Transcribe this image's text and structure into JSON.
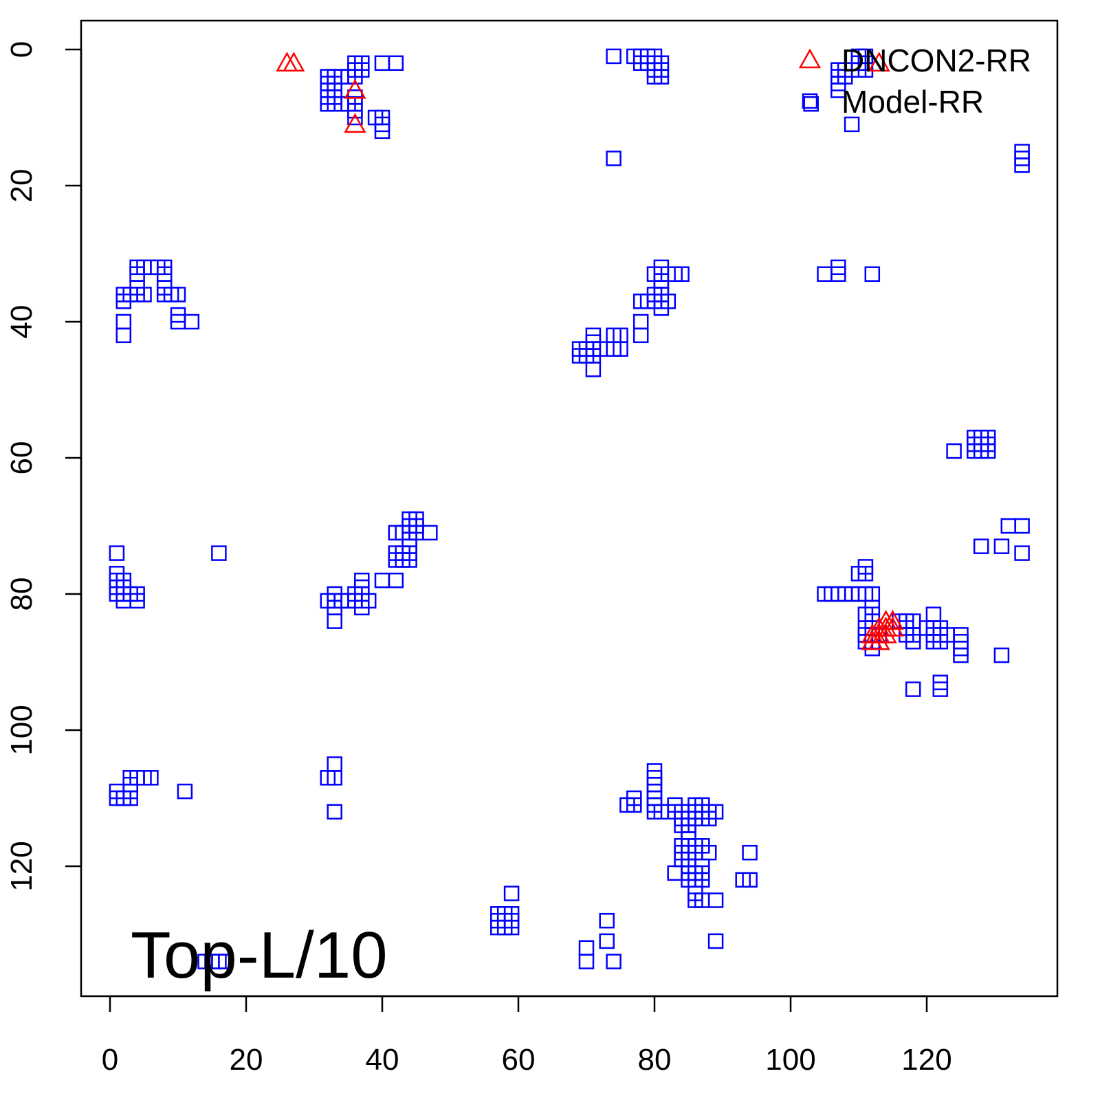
{
  "chart_data": {
    "type": "scatter",
    "title": "Top-L/10",
    "xlabel": "",
    "ylabel": "",
    "xlim": [
      0,
      135
    ],
    "ylim": [
      135,
      0
    ],
    "xticks": [
      0,
      20,
      40,
      60,
      80,
      100,
      120
    ],
    "yticks": [
      0,
      20,
      40,
      60,
      80,
      100,
      120
    ],
    "grid": false,
    "legend_position": "top-right",
    "colors": {
      "DNCON2-RR": "#ff0000",
      "Model-RR": "#0000ff"
    },
    "series": [
      {
        "name": "DNCON2-RR",
        "marker": "triangle",
        "points": [
          [
            26,
            2
          ],
          [
            27,
            2
          ],
          [
            36,
            6
          ],
          [
            36,
            11
          ],
          [
            113,
            2
          ],
          [
            114,
            84
          ],
          [
            115,
            84
          ],
          [
            113,
            85
          ],
          [
            114,
            85
          ],
          [
            115,
            85
          ],
          [
            112,
            86
          ],
          [
            113,
            86
          ],
          [
            114,
            86
          ],
          [
            112,
            87
          ],
          [
            113,
            87
          ]
        ]
      },
      {
        "name": "Model-RR",
        "marker": "square",
        "points": [
          [
            32,
            4
          ],
          [
            32,
            5
          ],
          [
            32,
            6
          ],
          [
            32,
            7
          ],
          [
            32,
            8
          ],
          [
            33,
            4
          ],
          [
            33,
            5
          ],
          [
            33,
            6
          ],
          [
            33,
            7
          ],
          [
            33,
            8
          ],
          [
            34,
            4
          ],
          [
            34,
            8
          ],
          [
            35,
            4
          ],
          [
            35,
            8
          ],
          [
            36,
            2
          ],
          [
            36,
            3
          ],
          [
            36,
            4
          ],
          [
            36,
            7
          ],
          [
            36,
            8
          ],
          [
            36,
            9
          ],
          [
            36,
            10
          ],
          [
            37,
            2
          ],
          [
            37,
            3
          ],
          [
            39,
            10
          ],
          [
            40,
            2
          ],
          [
            40,
            10
          ],
          [
            40,
            11
          ],
          [
            40,
            12
          ],
          [
            42,
            2
          ],
          [
            74,
            1
          ],
          [
            77,
            1
          ],
          [
            78,
            1
          ],
          [
            78,
            2
          ],
          [
            79,
            1
          ],
          [
            79,
            2
          ],
          [
            80,
            1
          ],
          [
            80,
            2
          ],
          [
            80,
            3
          ],
          [
            80,
            4
          ],
          [
            81,
            2
          ],
          [
            81,
            3
          ],
          [
            81,
            4
          ],
          [
            74,
            16
          ],
          [
            103,
            8
          ],
          [
            107,
            3
          ],
          [
            107,
            4
          ],
          [
            107,
            5
          ],
          [
            107,
            6
          ],
          [
            108,
            3
          ],
          [
            108,
            4
          ],
          [
            109,
            11
          ],
          [
            110,
            1
          ],
          [
            110,
            2
          ],
          [
            110,
            3
          ],
          [
            111,
            1
          ],
          [
            111,
            2
          ],
          [
            111,
            3
          ],
          [
            134,
            15
          ],
          [
            134,
            16
          ],
          [
            134,
            17
          ],
          [
            2,
            36
          ],
          [
            2,
            37
          ],
          [
            2,
            40
          ],
          [
            2,
            42
          ],
          [
            3,
            36
          ],
          [
            4,
            32
          ],
          [
            4,
            33
          ],
          [
            4,
            35
          ],
          [
            4,
            36
          ],
          [
            5,
            32
          ],
          [
            5,
            36
          ],
          [
            6,
            32
          ],
          [
            7,
            32
          ],
          [
            8,
            32
          ],
          [
            8,
            33
          ],
          [
            8,
            35
          ],
          [
            8,
            36
          ],
          [
            9,
            36
          ],
          [
            10,
            36
          ],
          [
            10,
            39
          ],
          [
            10,
            40
          ],
          [
            12,
            40
          ],
          [
            69,
            44
          ],
          [
            69,
            45
          ],
          [
            70,
            44
          ],
          [
            70,
            45
          ],
          [
            71,
            42
          ],
          [
            71,
            43
          ],
          [
            71,
            44
          ],
          [
            71,
            45
          ],
          [
            71,
            47
          ],
          [
            72,
            44
          ],
          [
            74,
            42
          ],
          [
            74,
            44
          ],
          [
            75,
            42
          ],
          [
            75,
            44
          ],
          [
            78,
            37
          ],
          [
            78,
            40
          ],
          [
            78,
            42
          ],
          [
            79,
            37
          ],
          [
            80,
            33
          ],
          [
            80,
            36
          ],
          [
            80,
            37
          ],
          [
            81,
            32
          ],
          [
            81,
            33
          ],
          [
            81,
            34
          ],
          [
            81,
            35
          ],
          [
            81,
            36
          ],
          [
            81,
            38
          ],
          [
            82,
            37
          ],
          [
            83,
            33
          ],
          [
            84,
            33
          ],
          [
            105,
            33
          ],
          [
            107,
            32
          ],
          [
            107,
            33
          ],
          [
            112,
            33
          ],
          [
            124,
            59
          ],
          [
            127,
            57
          ],
          [
            127,
            58
          ],
          [
            127,
            59
          ],
          [
            128,
            57
          ],
          [
            128,
            58
          ],
          [
            128,
            59
          ],
          [
            129,
            57
          ],
          [
            129,
            58
          ],
          [
            129,
            59
          ],
          [
            1,
            74
          ],
          [
            1,
            77
          ],
          [
            1,
            78
          ],
          [
            1,
            79
          ],
          [
            1,
            80
          ],
          [
            2,
            78
          ],
          [
            2,
            79
          ],
          [
            2,
            80
          ],
          [
            2,
            81
          ],
          [
            3,
            80
          ],
          [
            4,
            80
          ],
          [
            4,
            81
          ],
          [
            16,
            74
          ],
          [
            32,
            81
          ],
          [
            33,
            80
          ],
          [
            33,
            81
          ],
          [
            33,
            82
          ],
          [
            33,
            84
          ],
          [
            34,
            81
          ],
          [
            35,
            81
          ],
          [
            36,
            80
          ],
          [
            36,
            81
          ],
          [
            37,
            78
          ],
          [
            37,
            79
          ],
          [
            37,
            80
          ],
          [
            37,
            82
          ],
          [
            38,
            81
          ],
          [
            40,
            78
          ],
          [
            42,
            71
          ],
          [
            42,
            74
          ],
          [
            42,
            75
          ],
          [
            42,
            78
          ],
          [
            43,
            71
          ],
          [
            43,
            74
          ],
          [
            43,
            75
          ],
          [
            44,
            69
          ],
          [
            44,
            70
          ],
          [
            44,
            71
          ],
          [
            44,
            72
          ],
          [
            44,
            73
          ],
          [
            44,
            74
          ],
          [
            44,
            75
          ],
          [
            45,
            69
          ],
          [
            45,
            70
          ],
          [
            45,
            71
          ],
          [
            47,
            71
          ],
          [
            105,
            80
          ],
          [
            106,
            80
          ],
          [
            107,
            80
          ],
          [
            108,
            80
          ],
          [
            109,
            80
          ],
          [
            110,
            77
          ],
          [
            110,
            80
          ],
          [
            111,
            76
          ],
          [
            111,
            77
          ],
          [
            111,
            80
          ],
          [
            111,
            83
          ],
          [
            111,
            85
          ],
          [
            111,
            86
          ],
          [
            111,
            87
          ],
          [
            112,
            80
          ],
          [
            112,
            82
          ],
          [
            112,
            83
          ],
          [
            112,
            84
          ],
          [
            112,
            85
          ],
          [
            112,
            86
          ],
          [
            112,
            87
          ],
          [
            112,
            88
          ],
          [
            113,
            86
          ],
          [
            116,
            84
          ],
          [
            117,
            84
          ],
          [
            117,
            85
          ],
          [
            117,
            86
          ],
          [
            118,
            84
          ],
          [
            118,
            86
          ],
          [
            118,
            87
          ],
          [
            118,
            94
          ],
          [
            120,
            85
          ],
          [
            121,
            83
          ],
          [
            121,
            85
          ],
          [
            121,
            86
          ],
          [
            121,
            87
          ],
          [
            122,
            85
          ],
          [
            122,
            86
          ],
          [
            122,
            87
          ],
          [
            122,
            93
          ],
          [
            122,
            94
          ],
          [
            123,
            86
          ],
          [
            125,
            86
          ],
          [
            125,
            87
          ],
          [
            125,
            88
          ],
          [
            125,
            89
          ],
          [
            128,
            73
          ],
          [
            131,
            73
          ],
          [
            131,
            89
          ],
          [
            132,
            70
          ],
          [
            134,
            70
          ],
          [
            134,
            74
          ],
          [
            1,
            109
          ],
          [
            1,
            110
          ],
          [
            2,
            110
          ],
          [
            3,
            107
          ],
          [
            3,
            108
          ],
          [
            3,
            109
          ],
          [
            3,
            110
          ],
          [
            4,
            107
          ],
          [
            5,
            107
          ],
          [
            6,
            107
          ],
          [
            11,
            109
          ],
          [
            32,
            107
          ],
          [
            33,
            105
          ],
          [
            33,
            107
          ],
          [
            33,
            112
          ],
          [
            14,
            134
          ],
          [
            15,
            134
          ],
          [
            16,
            134
          ],
          [
            17,
            134
          ],
          [
            57,
            127
          ],
          [
            57,
            128
          ],
          [
            57,
            129
          ],
          [
            58,
            127
          ],
          [
            58,
            128
          ],
          [
            58,
            129
          ],
          [
            59,
            124
          ],
          [
            59,
            127
          ],
          [
            59,
            128
          ],
          [
            59,
            129
          ],
          [
            70,
            132
          ],
          [
            70,
            134
          ],
          [
            73,
            128
          ],
          [
            73,
            131
          ],
          [
            74,
            134
          ],
          [
            76,
            111
          ],
          [
            77,
            110
          ],
          [
            77,
            111
          ],
          [
            80,
            106
          ],
          [
            80,
            107
          ],
          [
            80,
            108
          ],
          [
            80,
            109
          ],
          [
            80,
            110
          ],
          [
            80,
            111
          ],
          [
            80,
            112
          ],
          [
            81,
            112
          ],
          [
            83,
            111
          ],
          [
            83,
            112
          ],
          [
            83,
            121
          ],
          [
            84,
            112
          ],
          [
            84,
            113
          ],
          [
            84,
            114
          ],
          [
            84,
            117
          ],
          [
            84,
            118
          ],
          [
            84,
            119
          ],
          [
            85,
            113
          ],
          [
            85,
            114
          ],
          [
            85,
            115
          ],
          [
            85,
            116
          ],
          [
            85,
            117
          ],
          [
            85,
            118
          ],
          [
            85,
            119
          ],
          [
            85,
            120
          ],
          [
            85,
            121
          ],
          [
            85,
            122
          ],
          [
            86,
            111
          ],
          [
            86,
            112
          ],
          [
            86,
            113
          ],
          [
            86,
            117
          ],
          [
            86,
            118
          ],
          [
            86,
            121
          ],
          [
            86,
            122
          ],
          [
            86,
            124
          ],
          [
            86,
            125
          ],
          [
            87,
            111
          ],
          [
            87,
            112
          ],
          [
            87,
            113
          ],
          [
            87,
            117
          ],
          [
            87,
            120
          ],
          [
            87,
            121
          ],
          [
            87,
            122
          ],
          [
            87,
            125
          ],
          [
            88,
            112
          ],
          [
            88,
            113
          ],
          [
            88,
            118
          ],
          [
            89,
            112
          ],
          [
            89,
            125
          ],
          [
            89,
            131
          ],
          [
            93,
            122
          ],
          [
            94,
            118
          ],
          [
            94,
            122
          ]
        ]
      }
    ]
  }
}
